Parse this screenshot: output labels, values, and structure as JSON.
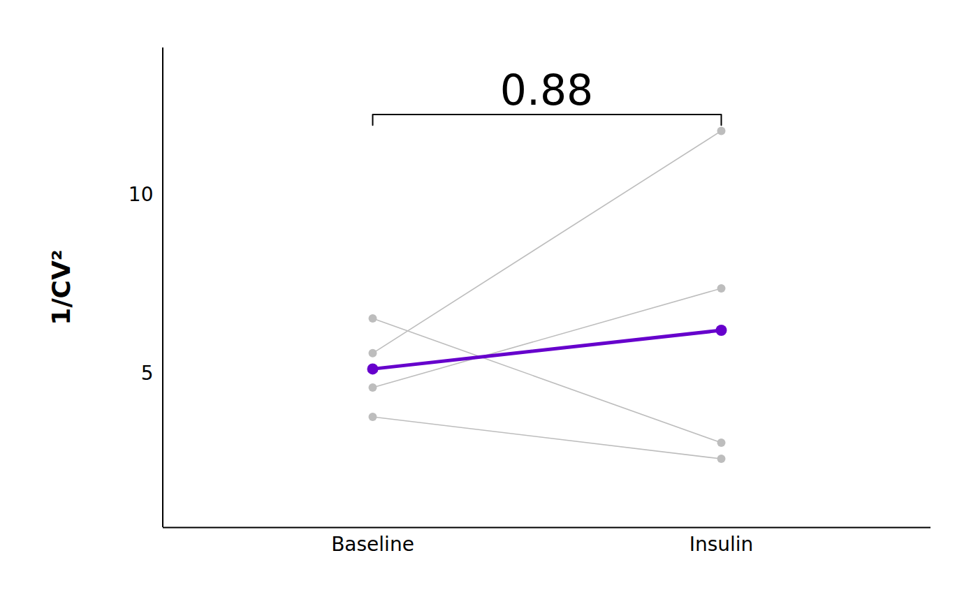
{
  "chart_data": {
    "type": "line",
    "marker": "circle",
    "categories": [
      "Baseline",
      "Insulin"
    ],
    "ylabel": "1/CV²",
    "ylim": [
      0.7,
      14.1
    ],
    "yticks": [
      5,
      10
    ],
    "series": [
      {
        "color": "#bdbdbd",
        "values": [
          5.57,
          11.78
        ]
      },
      {
        "color": "#bdbdbd",
        "values": [
          4.61,
          7.38
        ]
      },
      {
        "color": "#bdbdbd",
        "values": [
          6.54,
          3.07
        ]
      },
      {
        "color": "#bdbdbd",
        "values": [
          3.79,
          2.62
        ]
      }
    ],
    "mean": {
      "color": "#6600cc",
      "values": [
        5.13,
        6.21
      ]
    },
    "annotation": "0.88"
  }
}
